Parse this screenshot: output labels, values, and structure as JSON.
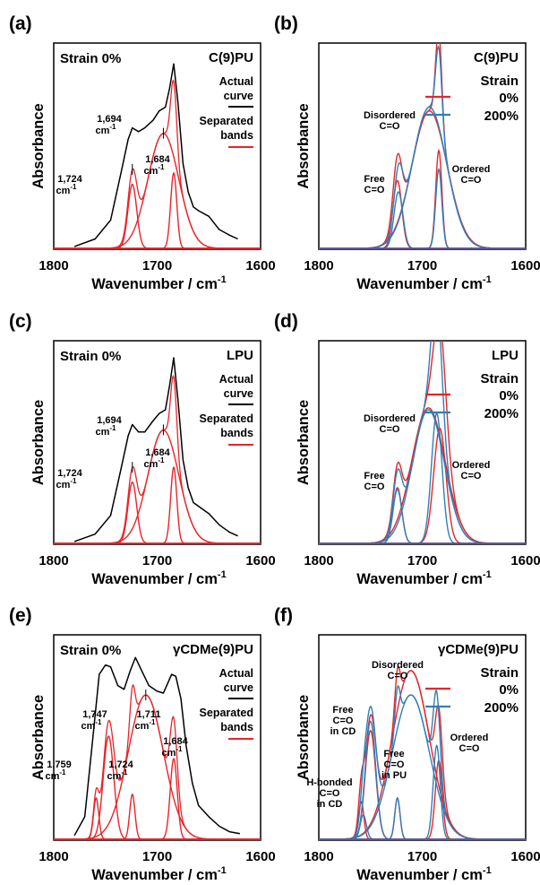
{
  "colors": {
    "actual": "#000000",
    "bands": "#e8242a",
    "strain0": "#e8242a",
    "strain200": "#2f7fb8",
    "frame": "#000000"
  },
  "axis": {
    "xlabel": "Wavenumber / cm",
    "xlabel_sup": "-1",
    "ylabel": "Absorbance",
    "ticks": [
      "1800",
      "1700",
      "1600"
    ]
  },
  "panels": [
    {
      "id": "a",
      "label": "(a)",
      "strain_text": "Strain 0%",
      "sample": "C(9)PU",
      "legend": {
        "actual": [
          "Actual",
          "curve"
        ],
        "bands": [
          "Separated",
          "bands"
        ]
      },
      "annotations": [
        {
          "key": "p1724",
          "lines": [
            "1,724",
            "cm",
            "-1"
          ]
        },
        {
          "key": "p1694",
          "lines": [
            "1,694",
            "cm",
            "-1"
          ]
        },
        {
          "key": "p1684",
          "lines": [
            "1,684",
            "cm",
            "-1"
          ]
        }
      ]
    },
    {
      "id": "b",
      "label": "(b)",
      "sample": "C(9)PU",
      "legend": {
        "title": "Strain",
        "s0": "0%",
        "s200": "200%"
      },
      "annotations": [
        {
          "key": "free",
          "lines": [
            "Free",
            "C=O"
          ]
        },
        {
          "key": "dis",
          "lines": [
            "Disordered",
            "C=O"
          ]
        },
        {
          "key": "ord",
          "lines": [
            "Ordered",
            "C=O"
          ]
        }
      ]
    },
    {
      "id": "c",
      "label": "(c)",
      "strain_text": "Strain 0%",
      "sample": "LPU",
      "legend": {
        "actual": [
          "Actual",
          "curve"
        ],
        "bands": [
          "Separated",
          "bands"
        ]
      },
      "annotations": [
        {
          "key": "p1724",
          "lines": [
            "1,724",
            "cm",
            "-1"
          ]
        },
        {
          "key": "p1694",
          "lines": [
            "1,694",
            "cm",
            "-1"
          ]
        },
        {
          "key": "p1684",
          "lines": [
            "1,684",
            "cm",
            "-1"
          ]
        }
      ]
    },
    {
      "id": "d",
      "label": "(d)",
      "sample": "LPU",
      "legend": {
        "title": "Strain",
        "s0": "0%",
        "s200": "200%"
      },
      "annotations": [
        {
          "key": "free",
          "lines": [
            "Free",
            "C=O"
          ]
        },
        {
          "key": "dis",
          "lines": [
            "Disordered",
            "C=O"
          ]
        },
        {
          "key": "ord",
          "lines": [
            "Ordered",
            "C=O"
          ]
        }
      ]
    },
    {
      "id": "e",
      "label": "(e)",
      "strain_text": "Strain 0%",
      "sample": "γCDMe(9)PU",
      "legend": {
        "actual": [
          "Actual",
          "curve"
        ],
        "bands": [
          "Separated",
          "bands"
        ]
      },
      "annotations": [
        {
          "key": "p1759",
          "lines": [
            "1,759",
            "cm",
            "-1"
          ]
        },
        {
          "key": "p1747",
          "lines": [
            "1,747",
            "cm",
            "-1"
          ]
        },
        {
          "key": "p1724",
          "lines": [
            "1,724",
            "cm",
            "-1"
          ]
        },
        {
          "key": "p1711",
          "lines": [
            "1,711",
            "cm",
            "-1"
          ]
        },
        {
          "key": "p1684",
          "lines": [
            "1,684",
            "cm",
            "-1"
          ]
        }
      ]
    },
    {
      "id": "f",
      "label": "(f)",
      "sample": "γCDMe(9)PU",
      "legend": {
        "title": "Strain",
        "s0": "0%",
        "s200": "200%"
      },
      "annotations": [
        {
          "key": "hb",
          "lines": [
            "H-bonded",
            "C=O",
            "in CD"
          ]
        },
        {
          "key": "freecd",
          "lines": [
            "Free",
            "C=O",
            "in CD"
          ]
        },
        {
          "key": "dis",
          "lines": [
            "Disordered",
            "C=O"
          ]
        },
        {
          "key": "freepu",
          "lines": [
            "Free",
            "C=O",
            "in PU"
          ]
        },
        {
          "key": "ord",
          "lines": [
            "Ordered",
            "C=O"
          ]
        }
      ]
    }
  ],
  "chart_data": [
    {
      "panel": "a",
      "type": "line",
      "title": "C(9)PU",
      "xlabel": "Wavenumber / cm-1",
      "ylabel": "Absorbance",
      "xlim": [
        1800,
        1600
      ],
      "x_reversed": true,
      "series": [
        {
          "name": "Actual curve",
          "kind": "spectrum",
          "points": [
            [
              1780,
              0.01
            ],
            [
              1760,
              0.05
            ],
            [
              1745,
              0.15
            ],
            [
              1735,
              0.4
            ],
            [
              1728,
              0.58
            ],
            [
              1724,
              0.64
            ],
            [
              1718,
              0.62
            ],
            [
              1712,
              0.64
            ],
            [
              1704,
              0.68
            ],
            [
              1698,
              0.73
            ],
            [
              1692,
              0.75
            ],
            [
              1688,
              0.85
            ],
            [
              1684,
              0.98
            ],
            [
              1680,
              0.78
            ],
            [
              1675,
              0.45
            ],
            [
              1670,
              0.3
            ],
            [
              1665,
              0.22
            ],
            [
              1660,
              0.2
            ],
            [
              1650,
              0.17
            ],
            [
              1640,
              0.1
            ],
            [
              1630,
              0.07
            ],
            [
              1622,
              0.05
            ]
          ]
        },
        {
          "name": "Separated bands",
          "kind": "bands",
          "bands": [
            {
              "center": 1724,
              "height": 0.34,
              "fwhm": 10
            },
            {
              "center": 1694,
              "height": 0.61,
              "fwhm": 35
            },
            {
              "center": 1684,
              "height": 0.4,
              "fwhm": 7
            }
          ]
        }
      ]
    },
    {
      "panel": "b",
      "type": "line",
      "title": "C(9)PU",
      "xlabel": "Wavenumber / cm-1",
      "ylabel": "Absorbance",
      "xlim": [
        1800,
        1600
      ],
      "x_reversed": true,
      "series": [
        {
          "name": "0%",
          "bands": [
            {
              "center": 1724,
              "height": 0.36,
              "fwhm": 10
            },
            {
              "center": 1693,
              "height": 0.73,
              "fwhm": 40
            },
            {
              "center": 1684,
              "height": 0.52,
              "fwhm": 7
            }
          ]
        },
        {
          "name": "200%",
          "bands": [
            {
              "center": 1723,
              "height": 0.3,
              "fwhm": 10
            },
            {
              "center": 1693,
              "height": 0.75,
              "fwhm": 39
            },
            {
              "center": 1684,
              "height": 0.42,
              "fwhm": 7
            }
          ]
        }
      ]
    },
    {
      "panel": "c",
      "type": "line",
      "title": "LPU",
      "xlabel": "Wavenumber / cm-1",
      "ylabel": "Absorbance",
      "xlim": [
        1800,
        1600
      ],
      "x_reversed": true,
      "series": [
        {
          "name": "Actual curve",
          "kind": "spectrum",
          "points": [
            [
              1780,
              0.01
            ],
            [
              1760,
              0.05
            ],
            [
              1745,
              0.15
            ],
            [
              1735,
              0.4
            ],
            [
              1728,
              0.58
            ],
            [
              1724,
              0.64
            ],
            [
              1718,
              0.6
            ],
            [
              1712,
              0.6
            ],
            [
              1704,
              0.66
            ],
            [
              1698,
              0.7
            ],
            [
              1692,
              0.72
            ],
            [
              1688,
              0.85
            ],
            [
              1684,
              1.0
            ],
            [
              1680,
              0.78
            ],
            [
              1675,
              0.45
            ],
            [
              1670,
              0.3
            ],
            [
              1665,
              0.22
            ],
            [
              1660,
              0.2
            ],
            [
              1650,
              0.16
            ],
            [
              1640,
              0.1
            ],
            [
              1630,
              0.06
            ],
            [
              1622,
              0.04
            ]
          ]
        },
        {
          "name": "Separated bands",
          "kind": "bands",
          "bands": [
            {
              "center": 1724,
              "height": 0.33,
              "fwhm": 10
            },
            {
              "center": 1694,
              "height": 0.61,
              "fwhm": 35
            },
            {
              "center": 1684,
              "height": 0.41,
              "fwhm": 7
            }
          ]
        }
      ]
    },
    {
      "panel": "d",
      "type": "line",
      "title": "LPU",
      "xlabel": "Wavenumber / cm-1",
      "ylabel": "Absorbance",
      "xlim": [
        1800,
        1600
      ],
      "x_reversed": true,
      "series": [
        {
          "name": "0%",
          "bands": [
            {
              "center": 1724,
              "height": 0.3,
              "fwhm": 10
            },
            {
              "center": 1694,
              "height": 0.73,
              "fwhm": 38
            },
            {
              "center": 1683,
              "height": 0.62,
              "fwhm": 14
            }
          ]
        },
        {
          "name": "200%",
          "bands": [
            {
              "center": 1724,
              "height": 0.29,
              "fwhm": 10
            },
            {
              "center": 1694,
              "height": 0.72,
              "fwhm": 36
            },
            {
              "center": 1686,
              "height": 0.7,
              "fwhm": 12
            }
          ]
        }
      ]
    },
    {
      "panel": "e",
      "type": "line",
      "title": "γCDMe(9)PU",
      "xlabel": "Wavenumber / cm-1",
      "ylabel": "Absorbance",
      "xlim": [
        1800,
        1600
      ],
      "x_reversed": true,
      "series": [
        {
          "name": "Actual curve",
          "kind": "spectrum",
          "points": [
            [
              1780,
              0.02
            ],
            [
              1770,
              0.12
            ],
            [
              1762,
              0.55
            ],
            [
              1756,
              0.88
            ],
            [
              1750,
              0.93
            ],
            [
              1745,
              0.92
            ],
            [
              1738,
              0.82
            ],
            [
              1732,
              0.8
            ],
            [
              1726,
              0.9
            ],
            [
              1721,
              0.97
            ],
            [
              1715,
              0.9
            ],
            [
              1708,
              0.82
            ],
            [
              1700,
              0.79
            ],
            [
              1694,
              0.78
            ],
            [
              1690,
              0.83
            ],
            [
              1686,
              0.88
            ],
            [
              1682,
              0.87
            ],
            [
              1677,
              0.75
            ],
            [
              1672,
              0.5
            ],
            [
              1666,
              0.3
            ],
            [
              1660,
              0.18
            ],
            [
              1650,
              0.12
            ],
            [
              1640,
              0.07
            ],
            [
              1630,
              0.04
            ],
            [
              1620,
              0.03
            ]
          ]
        },
        {
          "name": "Separated bands",
          "kind": "bands",
          "bands": [
            {
              "center": 1759,
              "height": 0.22,
              "fwhm": 6
            },
            {
              "center": 1747,
              "height": 0.55,
              "fwhm": 12
            },
            {
              "center": 1724,
              "height": 0.24,
              "fwhm": 6
            },
            {
              "center": 1711,
              "height": 0.77,
              "fwhm": 40
            },
            {
              "center": 1684,
              "height": 0.43,
              "fwhm": 8
            }
          ]
        }
      ]
    },
    {
      "panel": "f",
      "type": "line",
      "title": "γCDMe(9)PU",
      "xlabel": "Wavenumber / cm-1",
      "ylabel": "Absorbance",
      "xlim": [
        1800,
        1600
      ],
      "x_reversed": true,
      "series": [
        {
          "name": "0%",
          "bands": [
            {
              "center": 1759,
              "height": 0.2,
              "fwhm": 6
            },
            {
              "center": 1750,
              "height": 0.58,
              "fwhm": 12
            },
            {
              "center": 1724,
              "height": 0.22,
              "fwhm": 6
            },
            {
              "center": 1711,
              "height": 0.9,
              "fwhm": 42
            },
            {
              "center": 1684,
              "height": 0.42,
              "fwhm": 8
            }
          ]
        },
        {
          "name": "200%",
          "bands": [
            {
              "center": 1757,
              "height": 0.13,
              "fwhm": 7
            },
            {
              "center": 1750,
              "height": 0.63,
              "fwhm": 12
            },
            {
              "center": 1724,
              "height": 0.22,
              "fwhm": 6
            },
            {
              "center": 1711,
              "height": 0.77,
              "fwhm": 42
            },
            {
              "center": 1686,
              "height": 0.5,
              "fwhm": 8
            }
          ]
        }
      ]
    }
  ]
}
